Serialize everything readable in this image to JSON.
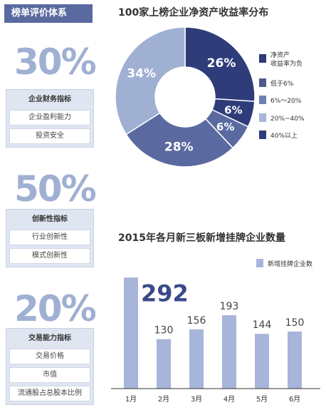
{
  "left": {
    "tag": "榜单评价体系",
    "blocks": [
      {
        "pct": "30%",
        "title": "企业财务指标",
        "items": [
          "企业盈利能力",
          "投资安全"
        ]
      },
      {
        "pct": "50%",
        "title": "创新性指标",
        "items": [
          "行业创新性",
          "模式创新性"
        ]
      },
      {
        "pct": "20%",
        "title": "交易能力指标",
        "items": [
          "交易价格",
          "市值",
          "流通股占总股本比例"
        ]
      }
    ]
  },
  "colors": {
    "dark_navy": "#2e3c7a",
    "mid_blue": "#5a6aa0",
    "light_blue": "#9fb0d2",
    "bar_blue": "#a7b5da"
  },
  "chart_data": [
    {
      "type": "pie",
      "title": "100家上榜企业净资产收益率分布",
      "slices": [
        {
          "label": "净资产收益率为负",
          "value": 26,
          "display": "26%",
          "color": "#2e3c7a"
        },
        {
          "label": "低于6%",
          "value": 6,
          "display": "6%",
          "color": "#2e3c7a"
        },
        {
          "label": "6%～20%",
          "value": 6,
          "display": "6%",
          "color": "#5a6aa0"
        },
        {
          "label": "20%~40%",
          "value": 28,
          "display": "28%",
          "color": "#5a6aa0"
        },
        {
          "label": "40%以上",
          "value": 34,
          "display": "34%",
          "color": "#9fb0d2"
        }
      ],
      "legend": [
        {
          "label": "净资产\n收益率为负",
          "color": "#2e3c7a"
        },
        {
          "label": "低于6%",
          "color": "#4d5a8e"
        },
        {
          "label": "6%～20%",
          "color": "#6f7fb2"
        },
        {
          "label": "20%~40%",
          "color": "#a7b5da"
        },
        {
          "label": "40%以上",
          "color": "#2e3c7a"
        }
      ],
      "legend_placement": "right",
      "donut": true
    },
    {
      "type": "bar",
      "title": "2015年各月新三板新增挂牌企业数量",
      "categories": [
        "1月",
        "2月",
        "3月",
        "4月",
        "5月",
        "6月"
      ],
      "series": [
        {
          "name": "新增挂牌企业数",
          "values": [
            292,
            130,
            156,
            193,
            144,
            150
          ]
        }
      ],
      "ylim": [
        0,
        300
      ],
      "legend_placement": "top-right",
      "grid": false
    }
  ]
}
